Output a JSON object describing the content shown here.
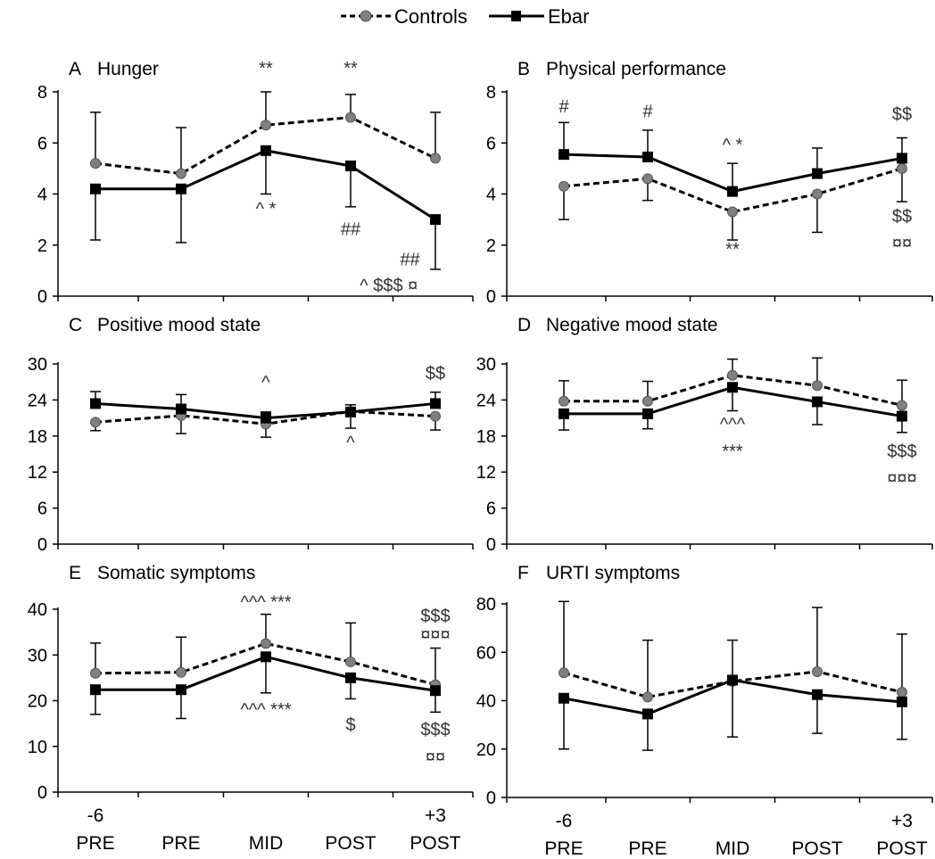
{
  "legend": {
    "entries": [
      {
        "label": "Controls",
        "series": "controls"
      },
      {
        "label": "Ebar",
        "series": "ebar"
      }
    ],
    "placement": "top-center"
  },
  "styles": {
    "controls": {
      "line_color": "#000000",
      "line_style": "dashed",
      "marker": "circle",
      "marker_color": "#808080"
    },
    "ebar": {
      "line_color": "#000000",
      "line_style": "solid",
      "marker": "square",
      "marker_color": "#000000"
    }
  },
  "x_tick_rows": {
    "top": [
      "-6",
      "",
      "",
      "",
      "+3"
    ],
    "bottom": [
      "PRE",
      "PRE",
      "MID",
      "POST",
      "POST"
    ]
  },
  "chart_data": [
    {
      "panel": "A",
      "title": "Hunger",
      "type": "line",
      "categories": [
        "-6 PRE",
        "PRE",
        "MID",
        "POST",
        "+3 POST"
      ],
      "ylim": [
        0,
        8
      ],
      "yticks": [
        0,
        2,
        4,
        6,
        8
      ],
      "series": [
        {
          "name": "Controls",
          "key": "controls",
          "values": [
            5.2,
            4.8,
            6.7,
            7.0,
            5.4
          ],
          "err_up": [
            2.0,
            1.8,
            1.3,
            0.9,
            1.8
          ],
          "err_down": [
            0,
            0,
            0,
            0,
            0
          ]
        },
        {
          "name": "Ebar",
          "key": "ebar",
          "values": [
            4.2,
            4.2,
            5.7,
            5.1,
            3.0
          ],
          "err_up": [
            0,
            0,
            0,
            0,
            0
          ],
          "err_down": [
            2.0,
            2.1,
            1.7,
            1.6,
            1.95
          ]
        }
      ],
      "annotations": [
        {
          "text": "**",
          "x_index": 2,
          "y": 8.7
        },
        {
          "text": "**",
          "x_index": 3,
          "y": 8.7
        },
        {
          "text": "^ *",
          "x_index": 2,
          "y": 3.2
        },
        {
          "text": "##",
          "x_index": 3,
          "y": 2.4
        },
        {
          "text": "##",
          "x_index": 3.7,
          "y": 1.2
        },
        {
          "text": "^ $$$ ¤",
          "x_index": 3.45,
          "y": 0.2
        }
      ]
    },
    {
      "panel": "B",
      "title": "Physical performance",
      "type": "line",
      "categories": [
        "-6 PRE",
        "PRE",
        "MID",
        "POST",
        "+3 POST"
      ],
      "ylim": [
        0,
        8
      ],
      "yticks": [
        0,
        2,
        4,
        6,
        8
      ],
      "series": [
        {
          "name": "Controls",
          "key": "controls",
          "values": [
            4.3,
            4.6,
            3.3,
            4.0,
            5.0
          ],
          "err_up": [
            0,
            0,
            0,
            0,
            0
          ],
          "err_down": [
            1.3,
            0.85,
            1.1,
            1.5,
            1.3
          ]
        },
        {
          "name": "Ebar",
          "key": "ebar",
          "values": [
            5.55,
            5.45,
            4.1,
            4.8,
            5.4
          ],
          "err_up": [
            1.25,
            1.05,
            1.1,
            1.0,
            0.8
          ],
          "err_down": [
            0,
            0,
            0,
            0,
            0
          ]
        }
      ],
      "annotations": [
        {
          "text": "#",
          "x_index": 0,
          "y": 7.2
        },
        {
          "text": "#",
          "x_index": 1,
          "y": 7.0
        },
        {
          "text": "$$",
          "x_index": 4,
          "y": 6.9
        },
        {
          "text": "^ *",
          "x_index": 2,
          "y": 5.7
        },
        {
          "text": "**",
          "x_index": 2,
          "y": 1.6
        },
        {
          "text": "$$",
          "x_index": 4,
          "y": 2.9
        },
        {
          "text": "¤¤",
          "x_index": 4,
          "y": 1.85
        }
      ]
    },
    {
      "panel": "C",
      "title": "Positive mood state",
      "type": "line",
      "categories": [
        "-6 PRE",
        "PRE",
        "MID",
        "POST",
        "+3 POST"
      ],
      "ylim": [
        0,
        30
      ],
      "yticks": [
        0,
        6,
        12,
        18,
        24,
        30
      ],
      "series": [
        {
          "name": "Controls",
          "key": "controls",
          "values": [
            20.3,
            21.4,
            20.0,
            22.1,
            21.3
          ],
          "err_up": [
            0,
            0,
            0,
            0,
            0
          ],
          "err_down": [
            1.4,
            3.0,
            2.2,
            2.8,
            2.3
          ]
        },
        {
          "name": "Ebar",
          "key": "ebar",
          "values": [
            23.4,
            22.5,
            21.0,
            22.0,
            23.4
          ],
          "err_up": [
            2.0,
            2.4,
            1.0,
            1.2,
            1.9
          ],
          "err_down": [
            0,
            0,
            0,
            0,
            0
          ]
        }
      ],
      "annotations": [
        {
          "text": "^",
          "x_index": 2,
          "y": 26.0
        },
        {
          "text": "$$",
          "x_index": 4,
          "y": 27.5
        },
        {
          "text": "^",
          "x_index": 3,
          "y": 16.0
        }
      ]
    },
    {
      "panel": "D",
      "title": "Negative mood state",
      "type": "line",
      "categories": [
        "-6 PRE",
        "PRE",
        "MID",
        "POST",
        "+3 POST"
      ],
      "ylim": [
        0,
        30
      ],
      "yticks": [
        0,
        6,
        12,
        18,
        24,
        30
      ],
      "series": [
        {
          "name": "Controls",
          "key": "controls",
          "values": [
            23.8,
            23.8,
            28.1,
            26.4,
            23.1
          ],
          "err_up": [
            3.4,
            3.3,
            2.7,
            4.6,
            4.2
          ],
          "err_down": [
            0,
            0,
            0,
            0,
            0
          ]
        },
        {
          "name": "Ebar",
          "key": "ebar",
          "values": [
            21.7,
            21.7,
            26.1,
            23.7,
            21.3
          ],
          "err_up": [
            0,
            0,
            0,
            0,
            0
          ],
          "err_down": [
            2.7,
            2.5,
            3.9,
            3.8,
            2.7
          ]
        }
      ],
      "annotations": [
        {
          "text": "^^^",
          "x_index": 2,
          "y": 19.0
        },
        {
          "text": "***",
          "x_index": 2,
          "y": 14.5
        },
        {
          "text": "$$$",
          "x_index": 4,
          "y": 14.5
        },
        {
          "text": "¤¤¤",
          "x_index": 4,
          "y": 10.0
        }
      ]
    },
    {
      "panel": "E",
      "title": "Somatic symptoms",
      "type": "line",
      "categories": [
        "-6 PRE",
        "PRE",
        "MID",
        "POST",
        "+3 POST"
      ],
      "ylim": [
        0,
        40
      ],
      "yticks": [
        0,
        10,
        20,
        30,
        40
      ],
      "series": [
        {
          "name": "Controls",
          "key": "controls",
          "values": [
            26.0,
            26.2,
            32.5,
            28.5,
            23.5
          ],
          "err_up": [
            6.6,
            7.7,
            6.4,
            8.5,
            8.0
          ],
          "err_down": [
            0,
            0,
            0,
            0,
            0
          ]
        },
        {
          "name": "Ebar",
          "key": "ebar",
          "values": [
            22.4,
            22.4,
            29.6,
            25.0,
            22.2
          ],
          "err_up": [
            0,
            0,
            0,
            0,
            0
          ],
          "err_down": [
            5.4,
            6.3,
            7.9,
            4.6,
            4.7
          ]
        }
      ],
      "annotations": [
        {
          "text": "^^^ ***",
          "x_index": 2,
          "y": 40.3
        },
        {
          "text": "$$$",
          "x_index": 4,
          "y": 37.3
        },
        {
          "text": "¤¤¤",
          "x_index": 4,
          "y": 33.2
        },
        {
          "text": "^^^ ***",
          "x_index": 2,
          "y": 16.8
        },
        {
          "text": "$",
          "x_index": 3,
          "y": 13.5
        },
        {
          "text": "$$$",
          "x_index": 4,
          "y": 12.4
        },
        {
          "text": "¤¤",
          "x_index": 4,
          "y": 6.4
        }
      ]
    },
    {
      "panel": "F",
      "title": "URTI symptoms",
      "type": "line",
      "categories": [
        "-6 PRE",
        "PRE",
        "MID",
        "POST",
        "+3 POST"
      ],
      "ylim": [
        0,
        80
      ],
      "yticks": [
        0,
        20,
        40,
        60,
        80
      ],
      "series": [
        {
          "name": "Controls",
          "key": "controls",
          "values": [
            51.5,
            41.5,
            48.0,
            52.0,
            43.5
          ],
          "err_up": [
            29.5,
            23.5,
            17.0,
            26.5,
            24.0
          ],
          "err_down": [
            0,
            0,
            0,
            0,
            0
          ]
        },
        {
          "name": "Ebar",
          "key": "ebar",
          "values": [
            41.0,
            34.5,
            48.5,
            42.5,
            39.5
          ],
          "err_up": [
            0,
            0,
            0,
            0,
            0
          ],
          "err_down": [
            21.0,
            15.0,
            23.5,
            16.0,
            15.5
          ]
        }
      ],
      "annotations": []
    }
  ]
}
